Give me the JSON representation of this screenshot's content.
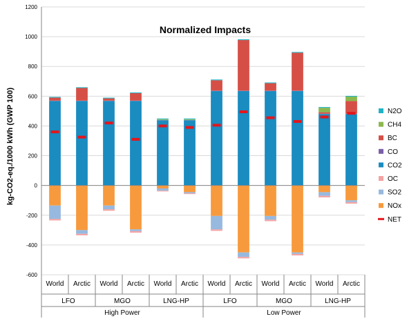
{
  "chart_data": {
    "type": "bar",
    "stacked": true,
    "title": "Normalized Impacts",
    "xlabel": "",
    "ylabel": "kg-CO2-eq./1000 kWh (GWP 100)",
    "ylim": [
      -600,
      1200
    ],
    "yticks": [
      -600,
      -400,
      -200,
      0,
      200,
      400,
      600,
      800,
      1000,
      1200
    ],
    "grid": true,
    "legend_position": "right",
    "categories": [
      "World",
      "Arctic",
      "World",
      "Arctic",
      "World",
      "Arctic",
      "World",
      "Arctic",
      "World",
      "Arctic",
      "World",
      "Arctic"
    ],
    "group_level_1": [
      {
        "label": "LFO",
        "span": 2
      },
      {
        "label": "MGO",
        "span": 2
      },
      {
        "label": "LNG-HP",
        "span": 2
      },
      {
        "label": "LFO",
        "span": 2
      },
      {
        "label": "MGO",
        "span": 2
      },
      {
        "label": "LNG-HP",
        "span": 2
      }
    ],
    "group_level_2": [
      {
        "label": "High Power",
        "span": 6
      },
      {
        "label": "Low Power",
        "span": 6
      }
    ],
    "series": [
      {
        "name": "N2O",
        "color": "#1eb4c6",
        "values": [
          5,
          5,
          5,
          5,
          5,
          5,
          5,
          5,
          5,
          5,
          5,
          5
        ]
      },
      {
        "name": "CH4",
        "color": "#8cb84e",
        "values": [
          0,
          0,
          0,
          0,
          5,
          5,
          0,
          0,
          0,
          0,
          30,
          30
        ]
      },
      {
        "name": "BC",
        "color": "#d64f46",
        "values": [
          20,
          85,
          15,
          50,
          0,
          0,
          70,
          340,
          50,
          255,
          10,
          85
        ]
      },
      {
        "name": "CO",
        "color": "#7b5fa8",
        "values": [
          2,
          2,
          2,
          2,
          2,
          2,
          2,
          2,
          2,
          2,
          2,
          2
        ]
      },
      {
        "name": "CO2",
        "color": "#1a8cc0",
        "values": [
          568,
          568,
          568,
          568,
          438,
          438,
          635,
          635,
          635,
          635,
          480,
          480
        ]
      },
      {
        "name": "OC",
        "color": "#f4a3a3",
        "values": [
          -10,
          -10,
          -10,
          -10,
          -5,
          -5,
          -10,
          -10,
          -10,
          -10,
          -10,
          -10
        ]
      },
      {
        "name": "SO2",
        "color": "#97b9df",
        "values": [
          -90,
          -25,
          -25,
          -12,
          -15,
          -8,
          -90,
          -30,
          -25,
          -10,
          -25,
          -12
        ]
      },
      {
        "name": "NOx",
        "color": "#f79a3d",
        "values": [
          -135,
          -300,
          -135,
          -295,
          -20,
          -45,
          -205,
          -450,
          -205,
          -450,
          -45,
          -100
        ]
      }
    ],
    "net": {
      "name": "NET",
      "color": "#e3161c",
      "values": [
        360,
        325,
        420,
        310,
        400,
        390,
        405,
        495,
        455,
        430,
        460,
        485
      ]
    }
  }
}
